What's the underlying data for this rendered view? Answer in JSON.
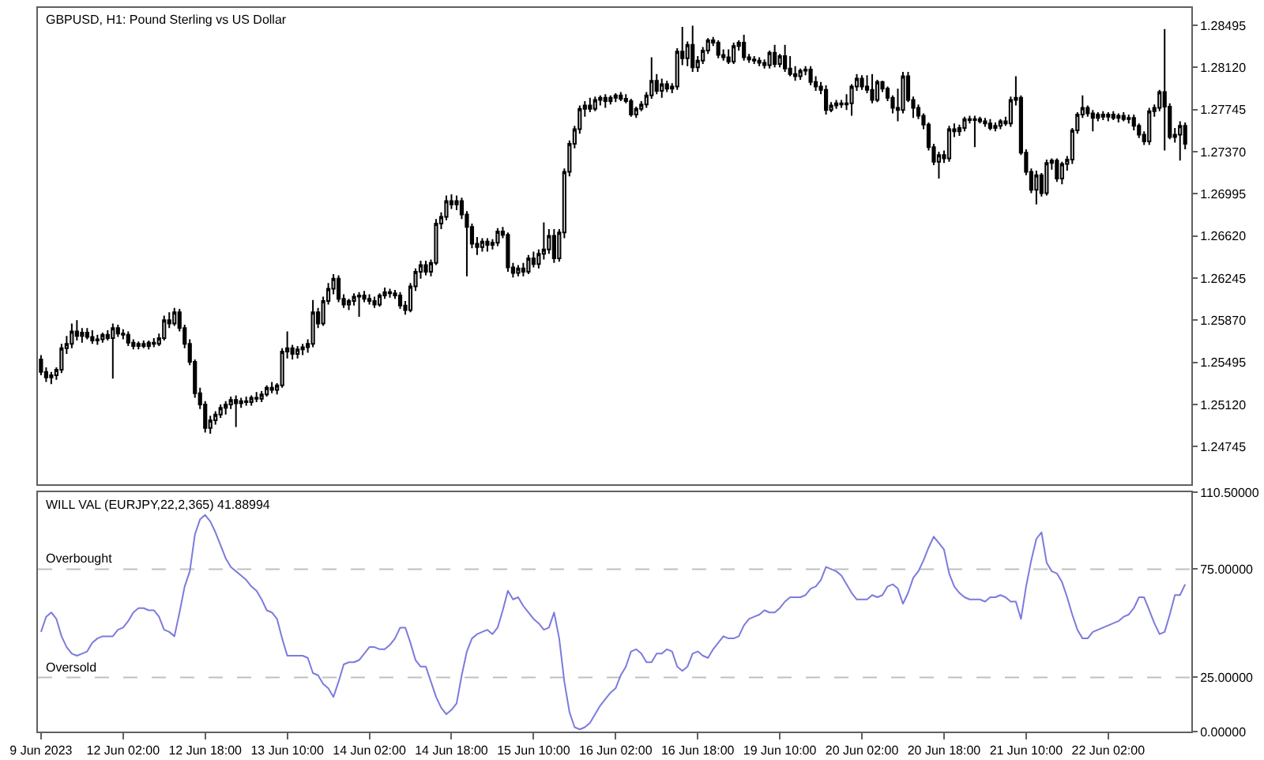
{
  "chart_data": [
    {
      "type": "candlestick",
      "title": "GBPUSD, H1: Pound Sterling vs US Dollar",
      "color": "#000000",
      "tick_labels": "y",
      "categories": [
        null,
        null,
        null,
        null,
        null,
        null,
        null,
        null,
        null,
        null,
        null,
        null,
        null,
        null,
        null,
        null,
        null,
        null,
        null,
        null,
        null,
        null,
        null,
        null,
        null,
        null,
        null,
        null,
        null,
        null,
        null,
        null,
        null,
        null,
        null,
        null,
        null,
        null,
        null,
        null,
        null,
        null,
        null,
        null,
        null,
        null,
        null,
        null,
        null,
        null,
        null,
        null,
        null,
        null,
        null,
        null,
        null,
        null,
        null,
        null,
        null,
        null,
        null,
        null,
        null,
        null,
        null,
        null,
        null,
        null,
        null,
        null,
        null,
        null,
        null,
        null,
        null,
        null,
        null,
        null,
        null,
        null,
        null,
        null,
        null,
        null,
        null,
        null,
        null,
        null,
        null,
        null,
        null,
        null,
        null,
        null,
        null,
        null,
        null,
        null,
        null,
        null,
        null,
        null,
        null,
        null,
        null,
        null,
        null,
        null,
        null,
        null,
        null,
        null,
        null,
        null,
        null,
        null,
        null,
        null,
        null,
        null,
        null,
        null,
        null,
        null,
        null,
        null,
        null,
        null,
        null,
        null,
        null,
        null,
        null,
        null,
        null,
        null,
        null,
        null,
        null,
        null,
        null,
        null,
        null,
        null,
        null,
        null,
        null,
        null,
        null,
        null,
        null,
        null,
        null,
        null,
        null,
        null,
        null,
        null,
        null,
        null,
        null,
        null,
        null,
        null,
        null,
        null,
        null,
        null,
        null,
        null,
        null,
        null,
        null,
        null,
        null,
        null,
        null,
        null,
        null,
        null,
        null,
        null,
        null,
        null,
        null,
        null,
        null,
        null,
        null,
        null,
        null,
        null,
        null,
        null,
        null,
        null,
        null,
        null,
        null,
        null,
        null,
        null,
        null,
        null,
        null,
        null,
        null,
        null,
        null,
        null,
        null,
        null,
        null,
        null,
        null,
        null,
        null,
        null,
        null,
        null,
        null,
        null
      ],
      "ohlc": [
        [
          1.2552,
          1.2556,
          1.2538,
          1.2541
        ],
        [
          1.2541,
          1.2545,
          1.2532,
          1.2536
        ],
        [
          1.2536,
          1.2541,
          1.253,
          1.2538
        ],
        [
          1.2538,
          1.2545,
          1.2534,
          1.2543
        ],
        [
          1.2543,
          1.2566,
          1.254,
          1.2562
        ],
        [
          1.2562,
          1.2573,
          1.2557,
          1.2566
        ],
        [
          1.2566,
          1.2584,
          1.2562,
          1.2577
        ],
        [
          1.2577,
          1.2587,
          1.2569,
          1.2573
        ],
        [
          1.2573,
          1.258,
          1.2567,
          1.2576
        ],
        [
          1.2576,
          1.258,
          1.257,
          1.2572
        ],
        [
          1.2572,
          1.2578,
          1.2566,
          1.2569
        ],
        [
          1.2569,
          1.2574,
          1.2565,
          1.257
        ],
        [
          1.257,
          1.2576,
          1.2567,
          1.2574
        ],
        [
          1.2574,
          1.2578,
          1.2569,
          1.2571
        ],
        [
          1.2571,
          1.2584,
          1.2535,
          1.258
        ],
        [
          1.258,
          1.2583,
          1.2572,
          1.2575
        ],
        [
          1.2575,
          1.2579,
          1.257,
          1.2574
        ],
        [
          1.2574,
          1.2577,
          1.2564,
          1.2567
        ],
        [
          1.2567,
          1.257,
          1.2561,
          1.2564
        ],
        [
          1.2564,
          1.2568,
          1.2561,
          1.2566
        ],
        [
          1.2566,
          1.2569,
          1.2562,
          1.2564
        ],
        [
          1.2564,
          1.2569,
          1.2561,
          1.2567
        ],
        [
          1.2567,
          1.2571,
          1.2563,
          1.2566
        ],
        [
          1.2566,
          1.2575,
          1.2564,
          1.2571
        ],
        [
          1.2571,
          1.2591,
          1.2569,
          1.2587
        ],
        [
          1.2587,
          1.2594,
          1.258,
          1.2584
        ],
        [
          1.2584,
          1.2598,
          1.2582,
          1.2594
        ],
        [
          1.2594,
          1.2597,
          1.2577,
          1.258
        ],
        [
          1.258,
          1.2583,
          1.2562,
          1.2566
        ],
        [
          1.2566,
          1.257,
          1.2547,
          1.255
        ],
        [
          1.255,
          1.2552,
          1.2518,
          1.2522
        ],
        [
          1.2522,
          1.2527,
          1.2508,
          1.2512
        ],
        [
          1.2512,
          1.2515,
          1.2487,
          1.2491
        ],
        [
          1.2491,
          1.2502,
          1.2486,
          1.2498
        ],
        [
          1.2498,
          1.2506,
          1.2494,
          1.2503
        ],
        [
          1.2503,
          1.2512,
          1.25,
          1.2509
        ],
        [
          1.2509,
          1.2515,
          1.2503,
          1.2512
        ],
        [
          1.2512,
          1.2519,
          1.2508,
          1.2516
        ],
        [
          1.2516,
          1.252,
          1.2492,
          1.2513
        ],
        [
          1.2513,
          1.2518,
          1.2509,
          1.2515
        ],
        [
          1.2515,
          1.2519,
          1.2511,
          1.2514
        ],
        [
          1.2514,
          1.252,
          1.2511,
          1.2518
        ],
        [
          1.2518,
          1.2523,
          1.2514,
          1.2517
        ],
        [
          1.2517,
          1.2524,
          1.2514,
          1.2521
        ],
        [
          1.2521,
          1.2529,
          1.2519,
          1.2527
        ],
        [
          1.2527,
          1.2532,
          1.2522,
          1.2525
        ],
        [
          1.2525,
          1.2531,
          1.2521,
          1.2529
        ],
        [
          1.2529,
          1.2562,
          1.2527,
          1.2559
        ],
        [
          1.2559,
          1.2577,
          1.2553,
          1.2562
        ],
        [
          1.2562,
          1.2565,
          1.2552,
          1.2557
        ],
        [
          1.2557,
          1.2564,
          1.2553,
          1.2561
        ],
        [
          1.2561,
          1.2566,
          1.2556,
          1.2563
        ],
        [
          1.2563,
          1.257,
          1.2558,
          1.2566
        ],
        [
          1.2566,
          1.2605,
          1.2563,
          1.2594
        ],
        [
          1.2594,
          1.2598,
          1.258,
          1.2584
        ],
        [
          1.2584,
          1.2608,
          1.2582,
          1.2604
        ],
        [
          1.2604,
          1.262,
          1.2601,
          1.2615
        ],
        [
          1.2615,
          1.2628,
          1.261,
          1.2624
        ],
        [
          1.2624,
          1.2627,
          1.2603,
          1.2606
        ],
        [
          1.2606,
          1.261,
          1.2598,
          1.2601
        ],
        [
          1.2601,
          1.2606,
          1.2596,
          1.2604
        ],
        [
          1.2604,
          1.2611,
          1.26,
          1.2608
        ],
        [
          1.2608,
          1.2612,
          1.259,
          1.2609
        ],
        [
          1.2609,
          1.2613,
          1.2603,
          1.2606
        ],
        [
          1.2606,
          1.261,
          1.2601,
          1.2604
        ],
        [
          1.2604,
          1.2608,
          1.2598,
          1.2601
        ],
        [
          1.2601,
          1.2611,
          1.2599,
          1.2609
        ],
        [
          1.2609,
          1.2616,
          1.2606,
          1.2612
        ],
        [
          1.2612,
          1.2615,
          1.2607,
          1.2611
        ],
        [
          1.2611,
          1.2614,
          1.2606,
          1.2609
        ],
        [
          1.2609,
          1.2612,
          1.2597,
          1.26
        ],
        [
          1.26,
          1.2604,
          1.2592,
          1.2596
        ],
        [
          1.2596,
          1.262,
          1.2594,
          1.2617
        ],
        [
          1.2617,
          1.2633,
          1.2613,
          1.263
        ],
        [
          1.263,
          1.264,
          1.2624,
          1.2636
        ],
        [
          1.2636,
          1.264,
          1.2627,
          1.263
        ],
        [
          1.263,
          1.2641,
          1.2626,
          1.2638
        ],
        [
          1.2638,
          1.2677,
          1.2636,
          1.2673
        ],
        [
          1.2673,
          1.2683,
          1.2668,
          1.2679
        ],
        [
          1.2679,
          1.2698,
          1.2676,
          1.2693
        ],
        [
          1.2693,
          1.2699,
          1.2686,
          1.269
        ],
        [
          1.269,
          1.2698,
          1.2685,
          1.2693
        ],
        [
          1.2693,
          1.2696,
          1.2677,
          1.2681
        ],
        [
          1.2681,
          1.2684,
          1.2626,
          1.267
        ],
        [
          1.267,
          1.2673,
          1.2651,
          1.2655
        ],
        [
          1.2655,
          1.2661,
          1.2645,
          1.2652
        ],
        [
          1.2652,
          1.266,
          1.2648,
          1.2657
        ],
        [
          1.2657,
          1.266,
          1.2648,
          1.2654
        ],
        [
          1.2654,
          1.2659,
          1.265,
          1.2656
        ],
        [
          1.2656,
          1.2669,
          1.2653,
          1.2666
        ],
        [
          1.2666,
          1.267,
          1.266,
          1.2663
        ],
        [
          1.2663,
          1.2665,
          1.263,
          1.2634
        ],
        [
          1.2634,
          1.2638,
          1.2625,
          1.2629
        ],
        [
          1.2629,
          1.2636,
          1.2626,
          1.2633
        ],
        [
          1.2633,
          1.2638,
          1.2626,
          1.263
        ],
        [
          1.263,
          1.2645,
          1.2628,
          1.2642
        ],
        [
          1.2642,
          1.2648,
          1.2634,
          1.2637
        ],
        [
          1.2637,
          1.265,
          1.2633,
          1.2646
        ],
        [
          1.2646,
          1.2674,
          1.2641,
          1.265
        ],
        [
          1.265,
          1.2668,
          1.2646,
          1.2662
        ],
        [
          1.2662,
          1.2668,
          1.2638,
          1.2642
        ],
        [
          1.2642,
          1.2668,
          1.2639,
          1.2665
        ],
        [
          1.2665,
          1.2722,
          1.266,
          1.2719
        ],
        [
          1.2719,
          1.2747,
          1.2715,
          1.2744
        ],
        [
          1.2744,
          1.276,
          1.274,
          1.2757
        ],
        [
          1.2757,
          1.2778,
          1.2753,
          1.2775
        ],
        [
          1.2775,
          1.2782,
          1.2768,
          1.2778
        ],
        [
          1.2778,
          1.2785,
          1.2772,
          1.2775
        ],
        [
          1.2775,
          1.2786,
          1.2773,
          1.2783
        ],
        [
          1.2783,
          1.2787,
          1.2778,
          1.2785
        ],
        [
          1.2785,
          1.2788,
          1.2776,
          1.2782
        ],
        [
          1.2782,
          1.2787,
          1.2779,
          1.2785
        ],
        [
          1.2785,
          1.2789,
          1.2781,
          1.2787
        ],
        [
          1.2787,
          1.279,
          1.2782,
          1.2784
        ],
        [
          1.2784,
          1.2788,
          1.278,
          1.2782
        ],
        [
          1.2782,
          1.2784,
          1.2768,
          1.277
        ],
        [
          1.277,
          1.2777,
          1.2767,
          1.2775
        ],
        [
          1.2775,
          1.2782,
          1.2773,
          1.2779
        ],
        [
          1.2779,
          1.279,
          1.2776,
          1.2787
        ],
        [
          1.2787,
          1.2821,
          1.2784,
          1.28
        ],
        [
          1.28,
          1.2806,
          1.2788,
          1.2791
        ],
        [
          1.2791,
          1.2802,
          1.2785,
          1.2797
        ],
        [
          1.2797,
          1.28,
          1.279,
          1.2793
        ],
        [
          1.2793,
          1.2798,
          1.2789,
          1.2795
        ],
        [
          1.2795,
          1.2829,
          1.2792,
          1.2826
        ],
        [
          1.2826,
          1.2848,
          1.2814,
          1.282
        ],
        [
          1.282,
          1.2835,
          1.2813,
          1.2832
        ],
        [
          1.2832,
          1.2849,
          1.2808,
          1.2812
        ],
        [
          1.2812,
          1.2822,
          1.2808,
          1.2818
        ],
        [
          1.2818,
          1.283,
          1.2815,
          1.2827
        ],
        [
          1.2827,
          1.2838,
          1.2824,
          1.2836
        ],
        [
          1.2836,
          1.2839,
          1.2831,
          1.2834
        ],
        [
          1.2834,
          1.2836,
          1.282,
          1.2823
        ],
        [
          1.2823,
          1.2828,
          1.2818,
          1.2821
        ],
        [
          1.2821,
          1.2828,
          1.2815,
          1.2817
        ],
        [
          1.2817,
          1.2834,
          1.2815,
          1.2831
        ],
        [
          1.2831,
          1.2836,
          1.2827,
          1.2834
        ],
        [
          1.2834,
          1.2841,
          1.2818,
          1.2821
        ],
        [
          1.2821,
          1.2824,
          1.2816,
          1.2819
        ],
        [
          1.2819,
          1.2822,
          1.2815,
          1.2818
        ],
        [
          1.2818,
          1.2821,
          1.2813,
          1.2816
        ],
        [
          1.2816,
          1.2819,
          1.2811,
          1.2814
        ],
        [
          1.2814,
          1.2827,
          1.2811,
          1.2825
        ],
        [
          1.2825,
          1.2832,
          1.2812,
          1.2815
        ],
        [
          1.2815,
          1.2824,
          1.2812,
          1.2822
        ],
        [
          1.2822,
          1.2832,
          1.2808,
          1.2811
        ],
        [
          1.2811,
          1.2822,
          1.2804,
          1.2806
        ],
        [
          1.2806,
          1.2813,
          1.28,
          1.2804
        ],
        [
          1.2804,
          1.2811,
          1.2801,
          1.2809
        ],
        [
          1.2809,
          1.2813,
          1.2805,
          1.281
        ],
        [
          1.281,
          1.2813,
          1.2796,
          1.2799
        ],
        [
          1.2799,
          1.2804,
          1.2791,
          1.2795
        ],
        [
          1.2795,
          1.2799,
          1.2788,
          1.2792
        ],
        [
          1.2792,
          1.2796,
          1.277,
          1.2774
        ],
        [
          1.2774,
          1.2781,
          1.2772,
          1.2778
        ],
        [
          1.2778,
          1.2783,
          1.2775,
          1.278
        ],
        [
          1.278,
          1.2783,
          1.2776,
          1.2779
        ],
        [
          1.2779,
          1.2788,
          1.2774,
          1.278
        ],
        [
          1.278,
          1.2797,
          1.2769,
          1.2795
        ],
        [
          1.2795,
          1.2806,
          1.2791,
          1.2802
        ],
        [
          1.2802,
          1.2805,
          1.2792,
          1.2795
        ],
        [
          1.2795,
          1.2805,
          1.2789,
          1.2792
        ],
        [
          1.2792,
          1.2806,
          1.278,
          1.2783
        ],
        [
          1.2783,
          1.2801,
          1.2781,
          1.2799
        ],
        [
          1.2799,
          1.28,
          1.279,
          1.2793
        ],
        [
          1.2793,
          1.2795,
          1.2782,
          1.2785
        ],
        [
          1.2785,
          1.2787,
          1.2771,
          1.2776
        ],
        [
          1.2776,
          1.2793,
          1.2764,
          1.2774
        ],
        [
          1.2774,
          1.2808,
          1.2771,
          1.2804
        ],
        [
          1.2804,
          1.2808,
          1.2781,
          1.2783
        ],
        [
          1.2783,
          1.2786,
          1.2767,
          1.2776
        ],
        [
          1.2776,
          1.2779,
          1.2766,
          1.2769
        ],
        [
          1.2769,
          1.2771,
          1.2757,
          1.2761
        ],
        [
          1.2761,
          1.2763,
          1.2738,
          1.2741
        ],
        [
          1.2741,
          1.2744,
          1.2725,
          1.2728
        ],
        [
          1.2728,
          1.2737,
          1.2713,
          1.2734
        ],
        [
          1.2734,
          1.2738,
          1.2727,
          1.2731
        ],
        [
          1.2731,
          1.276,
          1.2728,
          1.2757
        ],
        [
          1.2757,
          1.2762,
          1.275,
          1.2755
        ],
        [
          1.2755,
          1.2761,
          1.2751,
          1.2758
        ],
        [
          1.2758,
          1.2768,
          1.2755,
          1.2766
        ],
        [
          1.2766,
          1.2769,
          1.2762,
          1.2765
        ],
        [
          1.2765,
          1.2769,
          1.2741,
          1.2766
        ],
        [
          1.2766,
          1.2768,
          1.2762,
          1.2764
        ],
        [
          1.2764,
          1.2767,
          1.2759,
          1.2762
        ],
        [
          1.2762,
          1.2766,
          1.2756,
          1.2758
        ],
        [
          1.2758,
          1.2763,
          1.2755,
          1.276
        ],
        [
          1.276,
          1.2766,
          1.2757,
          1.2764
        ],
        [
          1.2764,
          1.2768,
          1.276,
          1.2762
        ],
        [
          1.2762,
          1.2786,
          1.2759,
          1.2783
        ],
        [
          1.2783,
          1.2804,
          1.2778,
          1.2785
        ],
        [
          1.2785,
          1.2787,
          1.2734,
          1.2736
        ],
        [
          1.2736,
          1.2739,
          1.2716,
          1.2719
        ],
        [
          1.2719,
          1.2722,
          1.27,
          1.2703
        ],
        [
          1.2703,
          1.272,
          1.269,
          1.2716
        ],
        [
          1.2716,
          1.2718,
          1.2697,
          1.27
        ],
        [
          1.27,
          1.273,
          1.2698,
          1.2727
        ],
        [
          1.2727,
          1.2731,
          1.2721,
          1.2729
        ],
        [
          1.2729,
          1.2731,
          1.271,
          1.2713
        ],
        [
          1.2713,
          1.2728,
          1.2708,
          1.2726
        ],
        [
          1.2726,
          1.2733,
          1.272,
          1.273
        ],
        [
          1.273,
          1.2758,
          1.2726,
          1.2756
        ],
        [
          1.2756,
          1.2772,
          1.2753,
          1.277
        ],
        [
          1.277,
          1.2787,
          1.2767,
          1.2776
        ],
        [
          1.2776,
          1.2778,
          1.2768,
          1.2771
        ],
        [
          1.2771,
          1.2774,
          1.2755,
          1.2767
        ],
        [
          1.2767,
          1.2772,
          1.2764,
          1.277
        ],
        [
          1.277,
          1.2773,
          1.2765,
          1.2768
        ],
        [
          1.2768,
          1.2772,
          1.2764,
          1.277
        ],
        [
          1.277,
          1.2773,
          1.2765,
          1.2767
        ],
        [
          1.2767,
          1.2771,
          1.2763,
          1.2769
        ],
        [
          1.2769,
          1.2772,
          1.2764,
          1.2766
        ],
        [
          1.2766,
          1.277,
          1.2762,
          1.2767
        ],
        [
          1.2767,
          1.277,
          1.2756,
          1.276
        ],
        [
          1.276,
          1.2762,
          1.2749,
          1.2752
        ],
        [
          1.2752,
          1.2755,
          1.2743,
          1.2746
        ],
        [
          1.2746,
          1.2776,
          1.2743,
          1.2773
        ],
        [
          1.2773,
          1.2779,
          1.2768,
          1.2776
        ],
        [
          1.2776,
          1.2792,
          1.2773,
          1.279
        ],
        [
          1.279,
          1.2846,
          1.2738,
          1.2777
        ],
        [
          1.2777,
          1.278,
          1.2748,
          1.275
        ],
        [
          1.275,
          1.2758,
          1.2745,
          1.2752
        ],
        [
          1.2752,
          1.2764,
          1.2729,
          1.276
        ],
        [
          1.276,
          1.2763,
          1.2739,
          1.2744
        ]
      ],
      "ylim": [
        1.2441,
        1.2865
      ],
      "yticks": [
        {
          "value": 1.28495,
          "label": "1.28495"
        },
        {
          "value": 1.2812,
          "label": "1.28120"
        },
        {
          "value": 1.27745,
          "label": "1.27745"
        },
        {
          "value": 1.2737,
          "label": "1.27370"
        },
        {
          "value": 1.26995,
          "label": "1.26995"
        },
        {
          "value": 1.2662,
          "label": "1.26620"
        },
        {
          "value": 1.26245,
          "label": "1.26245"
        },
        {
          "value": 1.2587,
          "label": "1.25870"
        },
        {
          "value": 1.25495,
          "label": "1.25495"
        },
        {
          "value": 1.2512,
          "label": "1.25120"
        },
        {
          "value": 1.24745,
          "label": "1.24745"
        }
      ]
    },
    {
      "type": "line",
      "title": "WILL VAL (EURJPY,22,2,365) 41.88994",
      "categories": [
        "9 Jun 2023",
        null,
        null,
        null,
        null,
        null,
        null,
        null,
        null,
        null,
        null,
        null,
        null,
        null,
        null,
        null,
        "12 Jun 02:00",
        null,
        null,
        null,
        null,
        null,
        null,
        null,
        null,
        null,
        null,
        null,
        null,
        null,
        null,
        null,
        "12 Jun 18:00",
        null,
        null,
        null,
        null,
        null,
        null,
        null,
        null,
        null,
        null,
        null,
        null,
        null,
        null,
        null,
        "13 Jun 10:00",
        null,
        null,
        null,
        null,
        null,
        null,
        null,
        null,
        null,
        null,
        null,
        null,
        null,
        null,
        null,
        "14 Jun 02:00",
        null,
        null,
        null,
        null,
        null,
        null,
        null,
        null,
        null,
        null,
        null,
        null,
        null,
        null,
        null,
        "14 Jun 18:00",
        null,
        null,
        null,
        null,
        null,
        null,
        null,
        null,
        null,
        null,
        null,
        null,
        null,
        null,
        null,
        "15 Jun 10:00",
        null,
        null,
        null,
        null,
        null,
        null,
        null,
        null,
        null,
        null,
        null,
        null,
        null,
        null,
        null,
        "16 Jun 02:00",
        null,
        null,
        null,
        null,
        null,
        null,
        null,
        null,
        null,
        null,
        null,
        null,
        null,
        null,
        null,
        "16 Jun 18:00",
        null,
        null,
        null,
        null,
        null,
        null,
        null,
        null,
        null,
        null,
        null,
        null,
        null,
        null,
        null,
        "19 Jun 10:00",
        null,
        null,
        null,
        null,
        null,
        null,
        null,
        null,
        null,
        null,
        null,
        null,
        null,
        null,
        null,
        "20 Jun 02:00",
        null,
        null,
        null,
        null,
        null,
        null,
        null,
        null,
        null,
        null,
        null,
        null,
        null,
        null,
        null,
        "20 Jun 18:00",
        null,
        null,
        null,
        null,
        null,
        null,
        null,
        null,
        null,
        null,
        null,
        null,
        null,
        null,
        null,
        "21 Jun 10:00",
        null,
        null,
        null,
        null,
        null,
        null,
        null,
        null,
        null,
        null,
        null,
        null,
        null,
        null,
        null,
        "22 Jun 02:00",
        null,
        null,
        null,
        null,
        null,
        null,
        null,
        null,
        null,
        null,
        null,
        null,
        null,
        null,
        null
      ],
      "series": [
        {
          "color": "#7b7bde",
          "values": [
            46,
            53,
            55,
            52,
            44,
            39,
            36,
            35,
            36,
            37,
            41,
            43,
            44,
            44,
            44,
            47,
            48,
            51,
            55,
            57,
            57,
            56,
            56,
            53,
            47,
            46,
            44,
            55,
            67,
            74,
            91,
            98,
            100,
            97,
            92,
            86,
            80,
            76,
            74,
            72,
            70,
            67,
            65,
            61,
            56,
            55,
            52,
            43,
            35,
            35,
            35,
            35,
            34,
            27,
            26,
            22,
            20,
            16,
            23,
            31,
            32,
            32,
            33,
            36,
            39,
            39,
            38,
            38,
            40,
            43,
            48,
            48,
            41,
            33,
            30,
            30,
            23,
            16,
            11,
            8,
            10,
            13,
            26,
            37,
            43,
            45,
            46,
            47,
            45,
            48,
            56,
            65,
            61,
            62,
            58,
            55,
            52,
            50,
            47,
            48,
            55,
            43,
            23,
            9,
            2,
            1,
            2,
            4,
            8,
            12,
            15,
            18,
            20,
            26,
            30,
            37,
            38,
            36,
            32,
            32,
            36,
            36,
            38,
            37,
            30,
            28,
            30,
            36,
            37,
            35,
            34,
            38,
            41,
            44,
            43,
            43,
            44,
            49,
            52,
            53,
            54,
            56,
            55,
            55,
            57,
            60,
            62,
            62,
            62,
            63,
            66,
            67,
            70,
            76,
            75,
            74,
            72,
            68,
            64,
            61,
            61,
            61,
            63,
            62,
            63,
            67,
            68,
            66,
            59,
            64,
            71,
            74,
            79,
            85,
            90,
            87,
            84,
            73,
            67,
            64,
            62,
            61,
            61,
            61,
            60,
            62,
            62,
            63,
            62,
            60,
            60,
            52,
            67,
            79,
            89,
            92,
            78,
            74,
            73,
            69,
            62,
            54,
            47,
            43,
            43,
            46,
            47,
            48,
            49,
            50,
            51,
            53,
            54,
            57,
            62,
            62,
            56,
            50,
            45,
            46,
            54,
            63,
            63,
            68
          ]
        }
      ],
      "ylim": [
        0,
        110.5
      ],
      "yticks": [
        {
          "value": 110.5,
          "label": "110.50000"
        },
        {
          "value": 75,
          "label": "75.00000"
        },
        {
          "value": 25,
          "label": "25.00000"
        },
        {
          "value": 0,
          "label": "0.00000"
        }
      ],
      "ref_lines": [
        {
          "axis": "y",
          "value": 75,
          "label": "Overbought",
          "color": "#c0c0c0",
          "line_style": "dashed"
        },
        {
          "axis": "y",
          "value": 25,
          "label": "Oversold",
          "color": "#c0c0c0",
          "line_style": "dashed"
        }
      ]
    }
  ]
}
